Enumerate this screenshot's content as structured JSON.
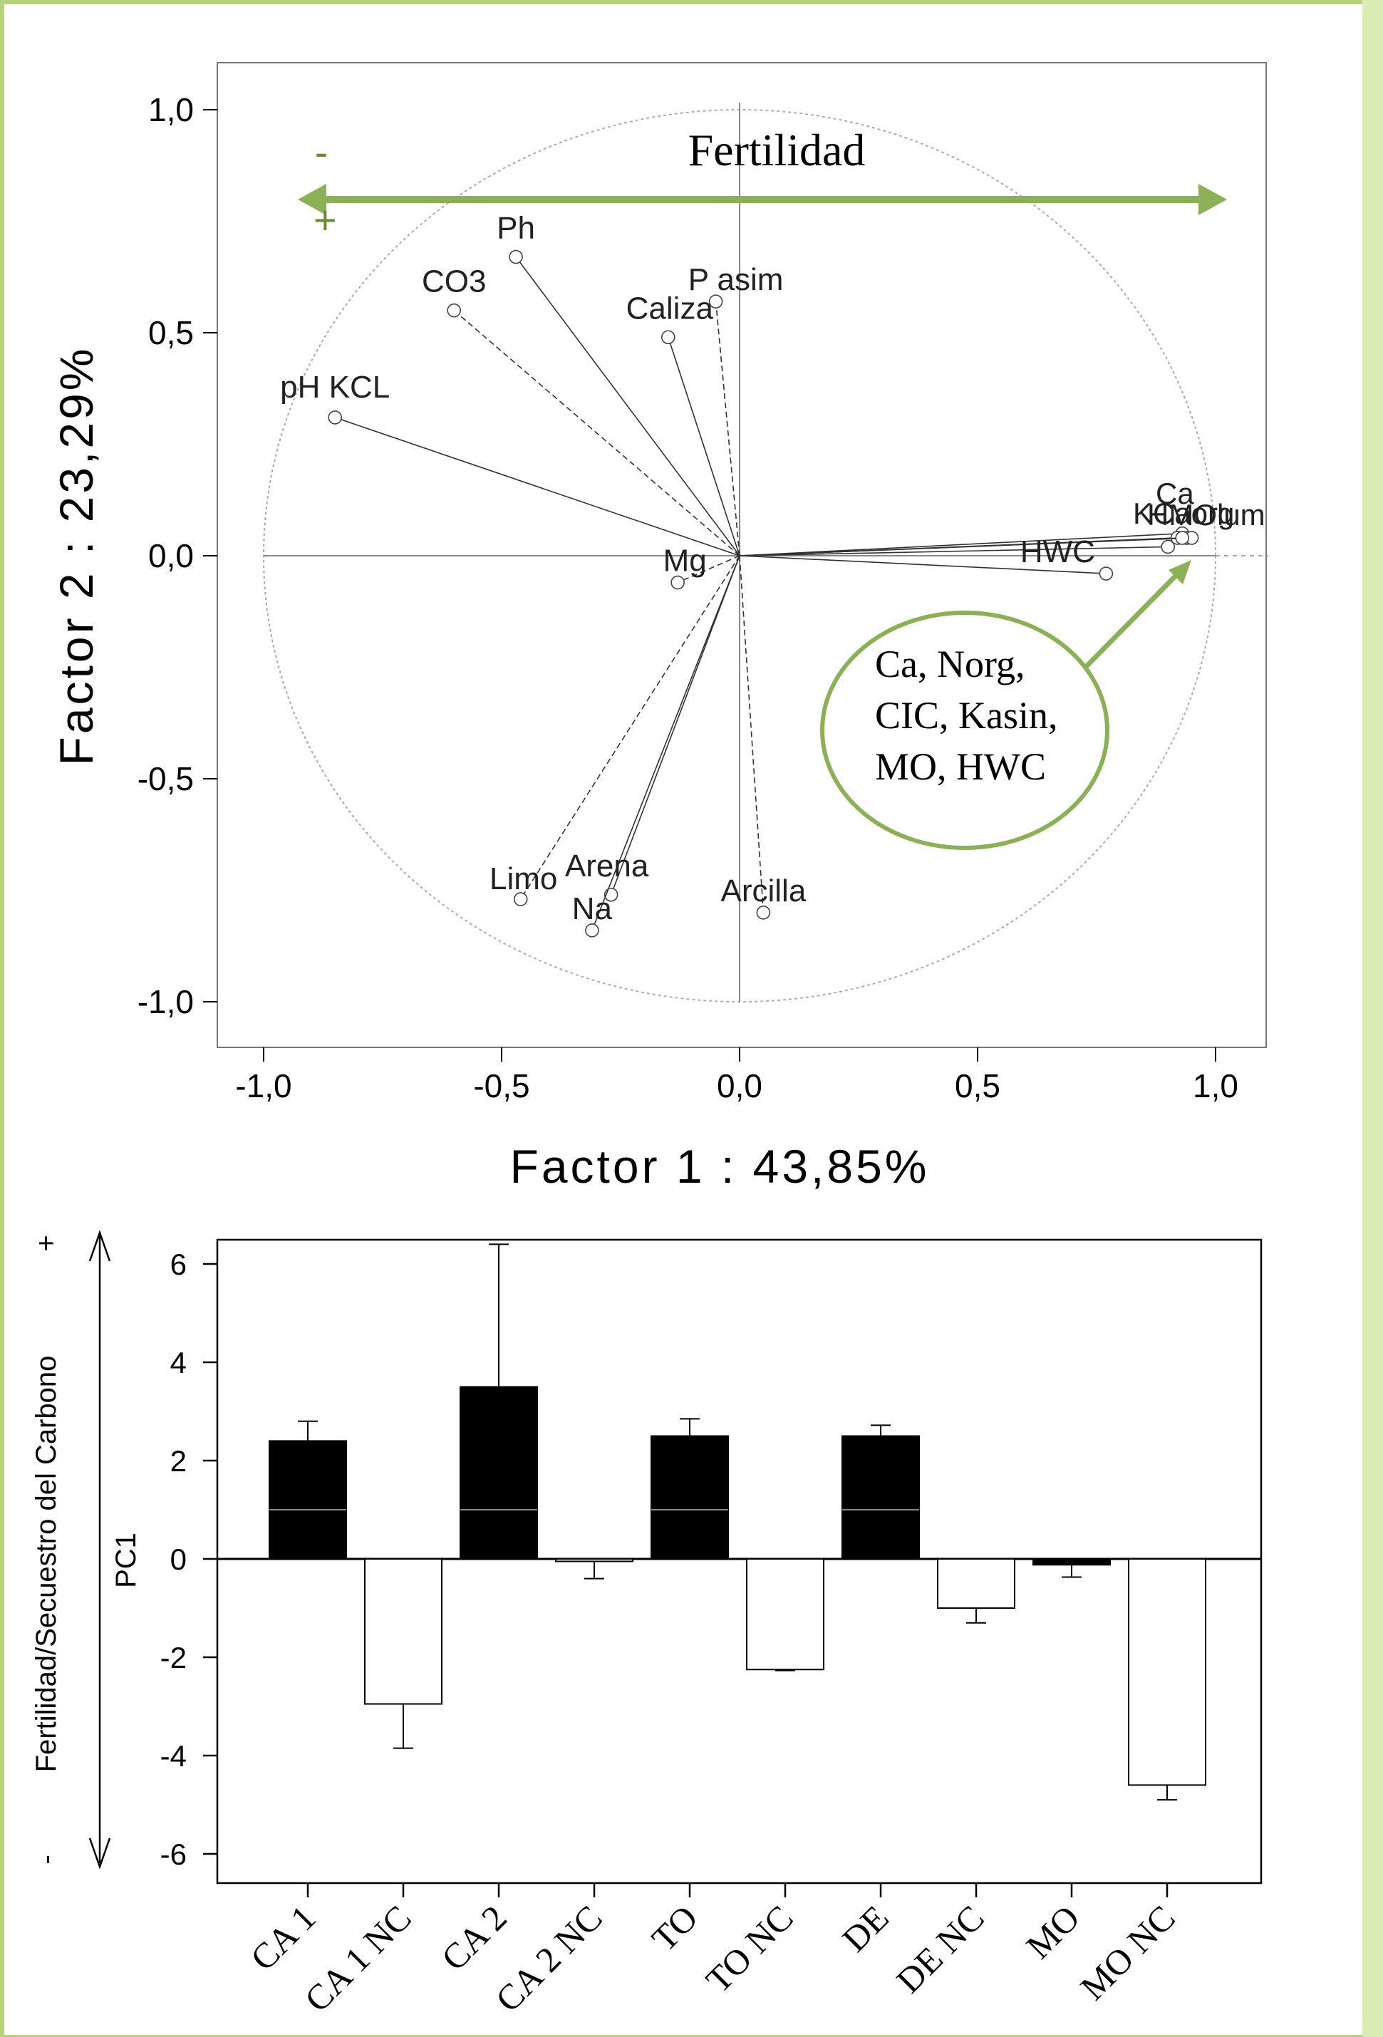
{
  "chart_data": [
    {
      "type": "scatter",
      "xlabel": "Factor 1 : 43,85%",
      "ylabel": "Factor 2 : 23,29%",
      "xlim": [
        -1.1,
        1.1
      ],
      "ylim": [
        -1.1,
        1.1
      ],
      "xticks": [
        "-1,0",
        "-0,5",
        "0,0",
        "0,5",
        "1,0"
      ],
      "yticks": [
        "1,0",
        "0,5",
        "0,0",
        "-0,5",
        "-1,0"
      ],
      "grid": false,
      "points": [
        {
          "label": "Ph",
          "x": -0.47,
          "y": 0.67,
          "dashed": false
        },
        {
          "label": "CO3",
          "x": -0.6,
          "y": 0.55,
          "dashed": true
        },
        {
          "label": "P asim",
          "x": -0.05,
          "y": 0.57,
          "dashed": true
        },
        {
          "label": "Caliza",
          "x": -0.15,
          "y": 0.49,
          "dashed": false
        },
        {
          "label": "pH KCL",
          "x": -0.85,
          "y": 0.31,
          "dashed": false
        },
        {
          "label": "Ca",
          "x": 0.93,
          "y": 0.05,
          "dashed": false
        },
        {
          "label": "Norg",
          "x": 0.92,
          "y": 0.04,
          "dashed": false
        },
        {
          "label": "CIC",
          "x": 0.94,
          "y": 0.04,
          "dashed": false
        },
        {
          "label": "Kasin",
          "x": 0.95,
          "y": 0.04,
          "dashed": false
        },
        {
          "label": "MO",
          "x": 0.93,
          "y": 0.04,
          "dashed": false
        },
        {
          "label": "HWC",
          "x": 0.9,
          "y": 0.02,
          "dashed": false
        },
        {
          "label": "HWC",
          "x": 0.77,
          "y": -0.04,
          "dashed": false
        },
        {
          "label": "Mg",
          "x": -0.13,
          "y": -0.06,
          "dashed": true
        },
        {
          "label": "Limo",
          "x": -0.46,
          "y": -0.77,
          "dashed": true
        },
        {
          "label": "Arena",
          "x": -0.27,
          "y": -0.76,
          "dashed": false
        },
        {
          "label": "Na",
          "x": -0.31,
          "y": -0.84,
          "dashed": false
        },
        {
          "label": "Arcilla",
          "x": 0.05,
          "y": -0.8,
          "dashed": true
        }
      ],
      "annotations": {
        "fertility_label": "Fertilidad",
        "minus_sign": "-",
        "plus_sign": "+",
        "callout_lines": [
          "Ca, Norg,",
          "CIC, Kasin,",
          "MO, HWC"
        ],
        "cluster_label_text": "KCaorg",
        "cluster_label_text2": "HMOlum"
      },
      "colors": {
        "arrow": "#8cb056",
        "axes": "#000000",
        "circle": "#aaaaaa"
      }
    },
    {
      "type": "bar",
      "ylabel": "PC1",
      "side_label": "Fertilidad/Secuestro del Carbono",
      "side_plus": "+",
      "side_minus": "-",
      "ylim": [
        -6.5,
        6.5
      ],
      "yticks": [
        "6",
        "4",
        "2",
        "0",
        "-2",
        "-4",
        "-6"
      ],
      "categories": [
        "CA 1",
        "CA 1 NC",
        "CA 2",
        "CA 2 NC",
        "TO",
        "TO NC",
        "DE",
        "DE NC",
        "MO",
        "MO NC"
      ],
      "values": [
        2.4,
        -2.95,
        3.5,
        -0.05,
        2.5,
        -2.25,
        2.5,
        -1.0,
        -0.12,
        -4.6
      ],
      "errors": [
        0.4,
        0.9,
        2.9,
        0.35,
        0.35,
        0.02,
        0.22,
        0.3,
        0.25,
        0.3
      ],
      "fill": [
        "black",
        "white",
        "black",
        "white",
        "black",
        "white",
        "black",
        "white",
        "black",
        "white"
      ],
      "median_line": 1.0,
      "colors": {
        "filled": "#000000",
        "open": "#ffffff",
        "median": "#888888"
      }
    }
  ],
  "page": {
    "border_color": "#b7d47c"
  }
}
